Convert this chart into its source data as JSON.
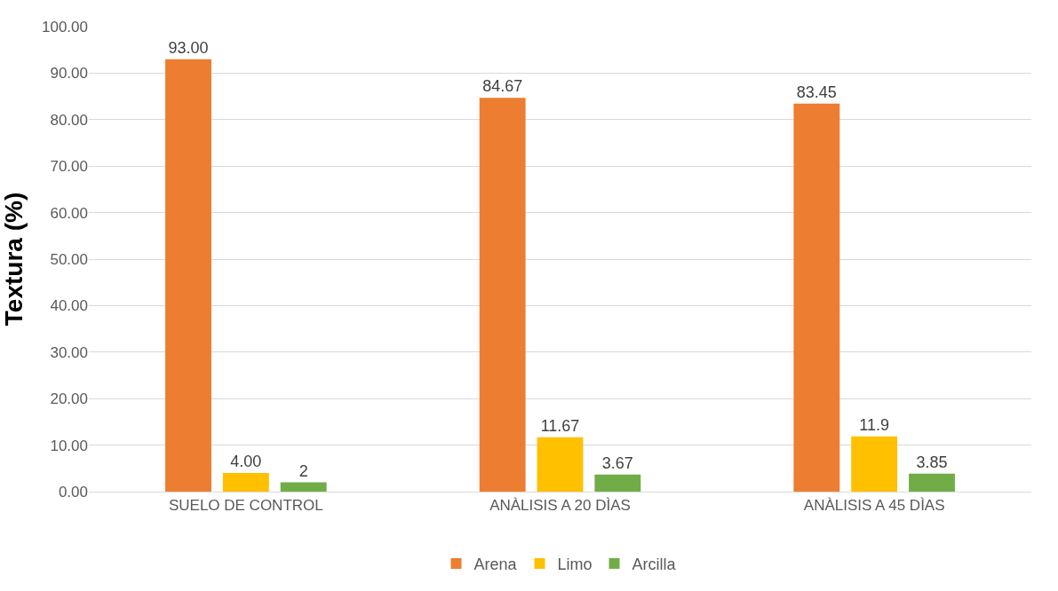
{
  "chart_data": {
    "type": "bar",
    "ylabel": "Textura (%)",
    "categories": [
      "SUELO DE CONTROL",
      "ANÀLISIS A 20 DÌAS",
      "ANÀLISIS A 45 DÌAS"
    ],
    "series": [
      {
        "name": "Arena",
        "color": "#ed7d31",
        "values": [
          93.0,
          84.67,
          83.45
        ],
        "value_labels": [
          "93.00",
          "84.67",
          "83.45"
        ]
      },
      {
        "name": "Limo",
        "color": "#ffc000",
        "values": [
          4.0,
          11.67,
          11.9
        ],
        "value_labels": [
          "4.00",
          "11.67",
          "11.9"
        ]
      },
      {
        "name": "Arcilla",
        "color": "#70ad47",
        "values": [
          2,
          3.67,
          3.85
        ],
        "value_labels": [
          "2",
          "3.67",
          "3.85"
        ]
      }
    ],
    "ylim": [
      0,
      100
    ],
    "yticks": [
      {
        "value": 0,
        "label": "0.00"
      },
      {
        "value": 10,
        "label": "10.00"
      },
      {
        "value": 20,
        "label": "20.00"
      },
      {
        "value": 30,
        "label": "30.00"
      },
      {
        "value": 40,
        "label": "40.00"
      },
      {
        "value": 50,
        "label": "50.00"
      },
      {
        "value": 60,
        "label": "60.00"
      },
      {
        "value": 70,
        "label": "70.00"
      },
      {
        "value": 80,
        "label": "80.00"
      },
      {
        "value": 90,
        "label": "90.00"
      },
      {
        "value": 100,
        "label": "100.00"
      }
    ],
    "grid": "y",
    "legend": "bottom"
  }
}
